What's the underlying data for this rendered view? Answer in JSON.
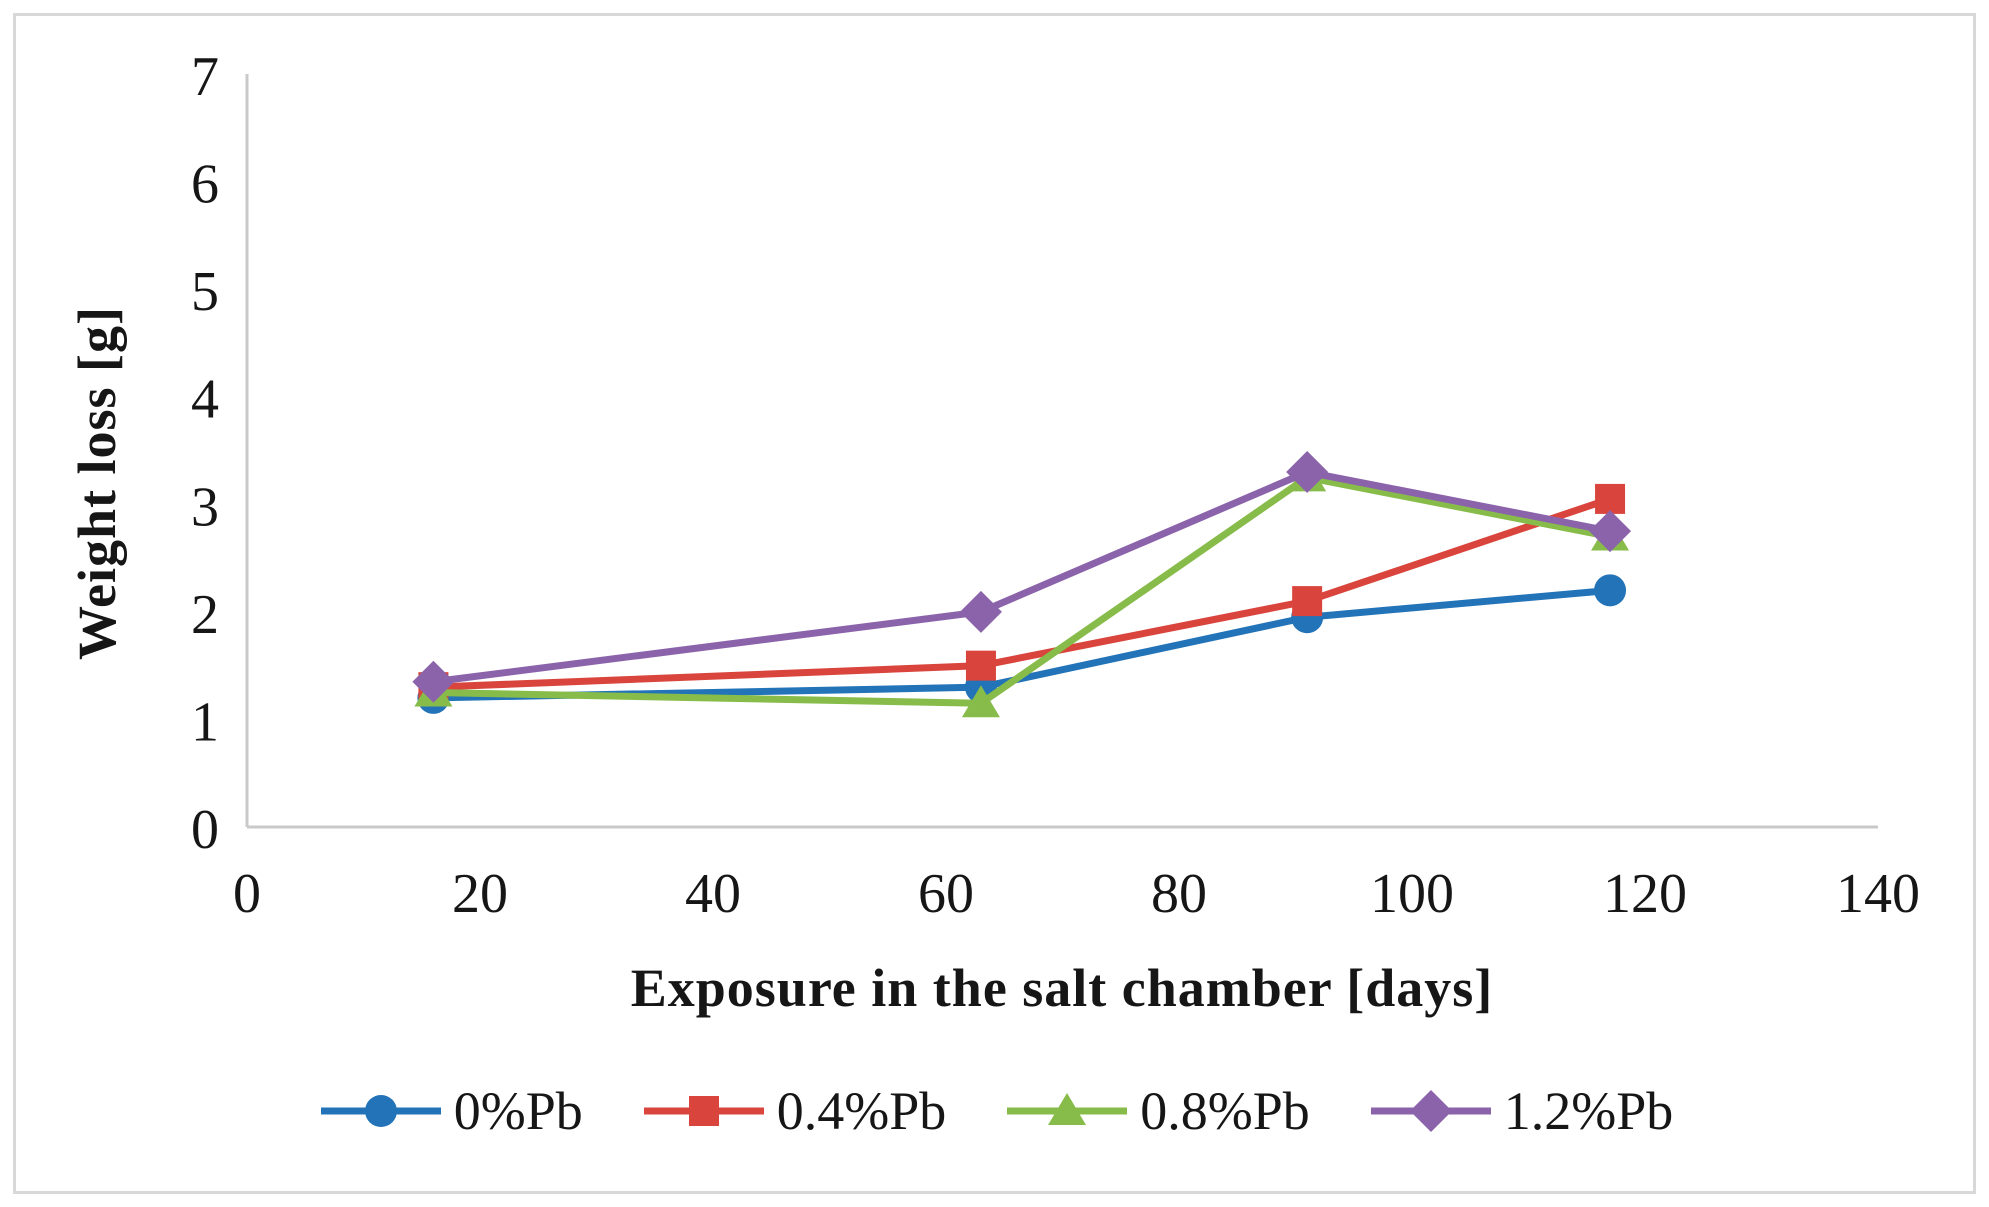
{
  "chart_data": {
    "type": "line",
    "title": "",
    "xlabel": "Exposure in the salt chamber [days]",
    "ylabel": "Weight loss [g]",
    "xlim": [
      0,
      140
    ],
    "ylim": [
      0,
      7
    ],
    "x_ticks": [
      0,
      20,
      40,
      60,
      80,
      100,
      120,
      140
    ],
    "y_ticks": [
      0,
      1,
      2,
      3,
      4,
      5,
      6,
      7
    ],
    "grid": false,
    "legend_position": "bottom",
    "x": [
      16,
      63,
      91,
      117
    ],
    "series": [
      {
        "name": "0%Pb",
        "color": "#2273b8",
        "marker": "circle",
        "values": [
          1.2,
          1.3,
          1.95,
          2.2
        ]
      },
      {
        "name": "0.4%Pb",
        "color": "#d9453c",
        "marker": "square",
        "values": [
          1.3,
          1.5,
          2.1,
          3.05
        ]
      },
      {
        "name": "0.8%Pb",
        "color": "#87bc4a",
        "marker": "triangle",
        "values": [
          1.25,
          1.15,
          3.25,
          2.7
        ]
      },
      {
        "name": "1.2%Pb",
        "color": "#8b63ab",
        "marker": "diamond",
        "values": [
          1.35,
          2.0,
          3.3,
          2.75
        ]
      }
    ],
    "colors": {
      "axis_line": "#c9c9c9",
      "figure_border": "#d8d8d8",
      "text": "#161616"
    }
  }
}
